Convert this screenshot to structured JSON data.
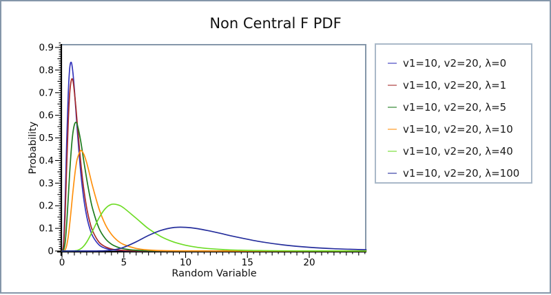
{
  "chart_data": {
    "type": "line",
    "title": "Non Central F PDF",
    "xlabel": "Random Variable",
    "ylabel": "Probability",
    "xlim": [
      0,
      24.6
    ],
    "ylim": [
      0,
      0.915
    ],
    "grid": false,
    "legend_position": "right",
    "x_ticks": {
      "major_values": [
        0,
        5,
        10,
        15,
        20
      ],
      "major_labels": [
        "0",
        "5",
        "10",
        "15",
        "20"
      ],
      "minor_step": 1,
      "subminor_step": 0.5
    },
    "y_ticks": {
      "major_values": [
        0,
        0.1,
        0.2,
        0.3,
        0.4,
        0.5,
        0.6,
        0.7,
        0.8,
        0.9
      ],
      "major_labels": [
        "0",
        "0.1",
        "0.2",
        "0.3",
        "0.4",
        "0.5",
        "0.6",
        "0.7",
        "0.8",
        "0.9"
      ],
      "minor_step": 0.05,
      "subminor_step": 0.01
    },
    "axis_color": "#000000",
    "frame_color": "#8496a9",
    "x": [
      0,
      0.125,
      0.25,
      0.375,
      0.5,
      0.625,
      0.75,
      0.875,
      1,
      1.125,
      1.25,
      1.5,
      1.75,
      2,
      2.25,
      2.5,
      3,
      3.5,
      4,
      4.5,
      5,
      6,
      7,
      8,
      9,
      10,
      11,
      12,
      13,
      14,
      16,
      18,
      20,
      22,
      24.6
    ],
    "series": [
      {
        "name": "v1=10, v2=20, λ=0",
        "color": "#3333bb",
        "values": [
          0,
          0.031,
          0.209,
          0.47,
          0.688,
          0.808,
          0.834,
          0.793,
          0.715,
          0.621,
          0.525,
          0.358,
          0.236,
          0.153,
          0.099,
          0.064,
          0.027,
          0.012,
          0.0056,
          0.0028,
          0.0014,
          0.0004,
          0.0001,
          0,
          0,
          0,
          0,
          0,
          0,
          0,
          0,
          0,
          0,
          0,
          0
        ]
      },
      {
        "name": "v1=10, v2=20, λ=1",
        "color": "#a62929",
        "values": [
          0,
          0.021,
          0.151,
          0.362,
          0.562,
          0.697,
          0.754,
          0.756,
          0.704,
          0.635,
          0.555,
          0.403,
          0.279,
          0.19,
          0.128,
          0.086,
          0.039,
          0.019,
          0.0089,
          0.0045,
          0.0024,
          0.0007,
          0.0002,
          0,
          0,
          0,
          0,
          0,
          0,
          0,
          0,
          0,
          0,
          0,
          0
        ]
      },
      {
        "name": "v1=10, v2=20, λ=5",
        "color": "#1e7b1e",
        "values": [
          0,
          0.004,
          0.035,
          0.116,
          0.23,
          0.348,
          0.448,
          0.519,
          0.558,
          0.569,
          0.556,
          0.491,
          0.403,
          0.318,
          0.243,
          0.182,
          0.1,
          0.055,
          0.03,
          0.0169,
          0.0096,
          0.0033,
          0.0012,
          0.0005,
          0.0002,
          0.0001,
          0,
          0,
          0,
          0,
          0,
          0,
          0,
          0,
          0
        ]
      },
      {
        "name": "v1=10, v2=20, λ=10",
        "color": "#ff900d",
        "values": [
          0,
          0.0005,
          0.0045,
          0.0226,
          0.0615,
          0.1188,
          0.1875,
          0.257,
          0.321,
          0.374,
          0.41,
          0.443,
          0.43,
          0.39,
          0.336,
          0.281,
          0.1865,
          0.118,
          0.0735,
          0.0454,
          0.0284,
          0.0112,
          0.0046,
          0.0019,
          0.0008,
          0.0004,
          0.0002,
          0.0001,
          0,
          0,
          0,
          0,
          0,
          0,
          0
        ]
      },
      {
        "name": "v1=10, v2=20, λ=40",
        "color": "#6edc26",
        "values": [
          0,
          0,
          0,
          0,
          0,
          0,
          0.0001,
          0.0003,
          0.0007,
          0.0015,
          0.003,
          0.009,
          0.021,
          0.0395,
          0.064,
          0.0915,
          0.1465,
          0.187,
          0.206,
          0.2044,
          0.19,
          0.1448,
          0.0985,
          0.0638,
          0.0404,
          0.0253,
          0.0158,
          0.01,
          0.0064,
          0.0041,
          0.0017,
          0.0008,
          0.0004,
          0.0002,
          0.0001
        ]
      },
      {
        "name": "v1=10, v2=20, λ=100",
        "color": "#252e9c",
        "values": [
          0,
          0,
          0,
          0,
          0,
          0,
          0,
          0,
          0,
          0,
          0,
          0,
          0,
          0,
          0,
          0.0001,
          0.0002,
          0.0012,
          0.0035,
          0.0085,
          0.0163,
          0.0404,
          0.0686,
          0.0908,
          0.1034,
          0.1046,
          0.0984,
          0.0878,
          0.0756,
          0.0631,
          0.0417,
          0.0261,
          0.0163,
          0.0101,
          0.0055
        ]
      }
    ]
  }
}
